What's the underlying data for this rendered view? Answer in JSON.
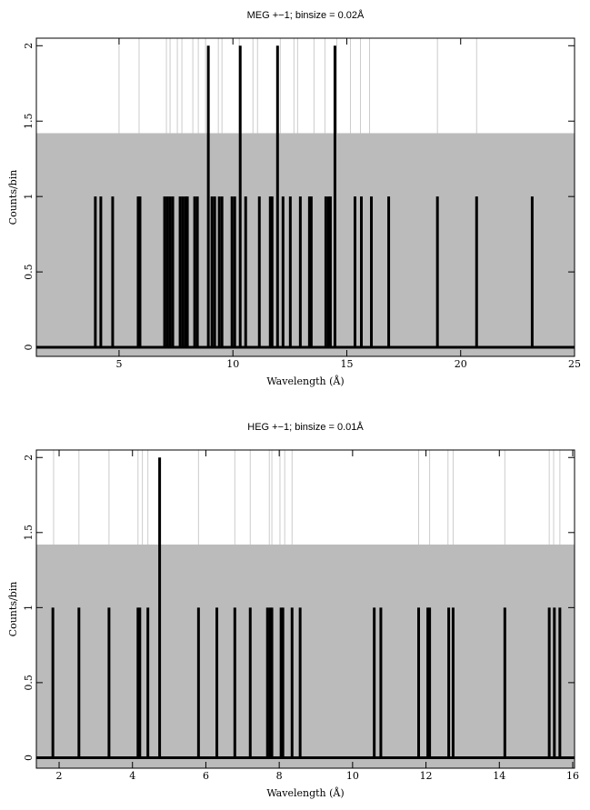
{
  "chart_data": [
    {
      "type": "spikes",
      "title": "MEG +−1; binsize = 0.02Å",
      "x_label": "Wavelength (Å)",
      "y_label": "Counts/bin",
      "x": [
        3.96,
        4.2,
        4.72,
        5.84,
        5.92,
        7.0,
        7.12,
        7.24,
        7.36,
        7.68,
        7.8,
        7.92,
        8.0,
        8.32,
        8.44,
        8.92,
        9.08,
        9.2,
        9.4,
        9.52,
        9.96,
        10.08,
        10.32,
        10.56,
        11.16,
        11.64,
        11.72,
        11.96,
        12.2,
        12.52,
        12.96,
        13.36,
        13.44,
        14.08,
        14.2,
        14.28,
        14.48,
        15.36,
        15.64,
        16.08,
        16.84,
        18.98,
        20.7,
        23.14
      ],
      "values": [
        1,
        1,
        1,
        1,
        1,
        1,
        1,
        1,
        1,
        1,
        1,
        1,
        1,
        1,
        1,
        2,
        1,
        1,
        1,
        1,
        1,
        1,
        2,
        1,
        1,
        1,
        1,
        2,
        1,
        1,
        1,
        1,
        1,
        1,
        1,
        1,
        2,
        1,
        1,
        1,
        1,
        1,
        1,
        1
      ],
      "color": "#000000",
      "line_positions": [
        5.0,
        5.88,
        7.08,
        7.24,
        7.56,
        7.76,
        8.24,
        8.48,
        8.8,
        9.36,
        9.52,
        10.28,
        10.88,
        11.08,
        12.08,
        12.68,
        12.84,
        13.56,
        14.04,
        14.56,
        15.16,
        15.6,
        16.0,
        18.98,
        20.7
      ],
      "line_color": "#cccccc",
      "background_level": 1.42,
      "background_color": "#bbbbbb",
      "xlim": [
        1.37,
        25
      ],
      "xticks": [
        5,
        10,
        15,
        20,
        25
      ],
      "ylim": [
        -0.06,
        2.05
      ],
      "yticks": [
        0,
        0.5,
        1,
        1.5,
        2
      ]
    },
    {
      "type": "spikes",
      "title": "HEG +−1; binsize = 0.01Å",
      "x_label": "Wavelength (Å)",
      "y_label": "Counts/bin",
      "x": [
        1.83,
        2.54,
        3.36,
        4.15,
        4.2,
        4.42,
        4.74,
        5.8,
        6.3,
        6.79,
        7.21,
        7.68,
        7.75,
        7.8,
        8.05,
        8.1,
        8.35,
        8.57,
        10.59,
        10.77,
        11.8,
        12.05,
        12.1,
        12.62,
        12.74,
        14.15,
        15.36,
        15.5,
        15.65
      ],
      "values": [
        1,
        1,
        1,
        1,
        1,
        1,
        2,
        1,
        1,
        1,
        1,
        1,
        1,
        1,
        1,
        1,
        1,
        1,
        1,
        1,
        1,
        1,
        1,
        1,
        1,
        1,
        1,
        1,
        1
      ],
      "color": "#000000",
      "line_positions": [
        1.85,
        2.54,
        3.36,
        4.15,
        4.27,
        4.42,
        5.8,
        6.79,
        7.21,
        7.73,
        7.8,
        8.02,
        8.15,
        8.35,
        11.8,
        12.1,
        12.6,
        12.74,
        14.15,
        15.36,
        15.48,
        15.65
      ],
      "line_color": "#cccccc",
      "background_level": 1.42,
      "background_color": "#bbbbbb",
      "xlim": [
        1.38,
        16.05
      ],
      "xticks": [
        2,
        4,
        6,
        8,
        10,
        12,
        14,
        16
      ],
      "ylim": [
        -0.07,
        2.05
      ],
      "yticks": [
        0,
        0.5,
        1,
        1.5,
        2
      ]
    }
  ]
}
